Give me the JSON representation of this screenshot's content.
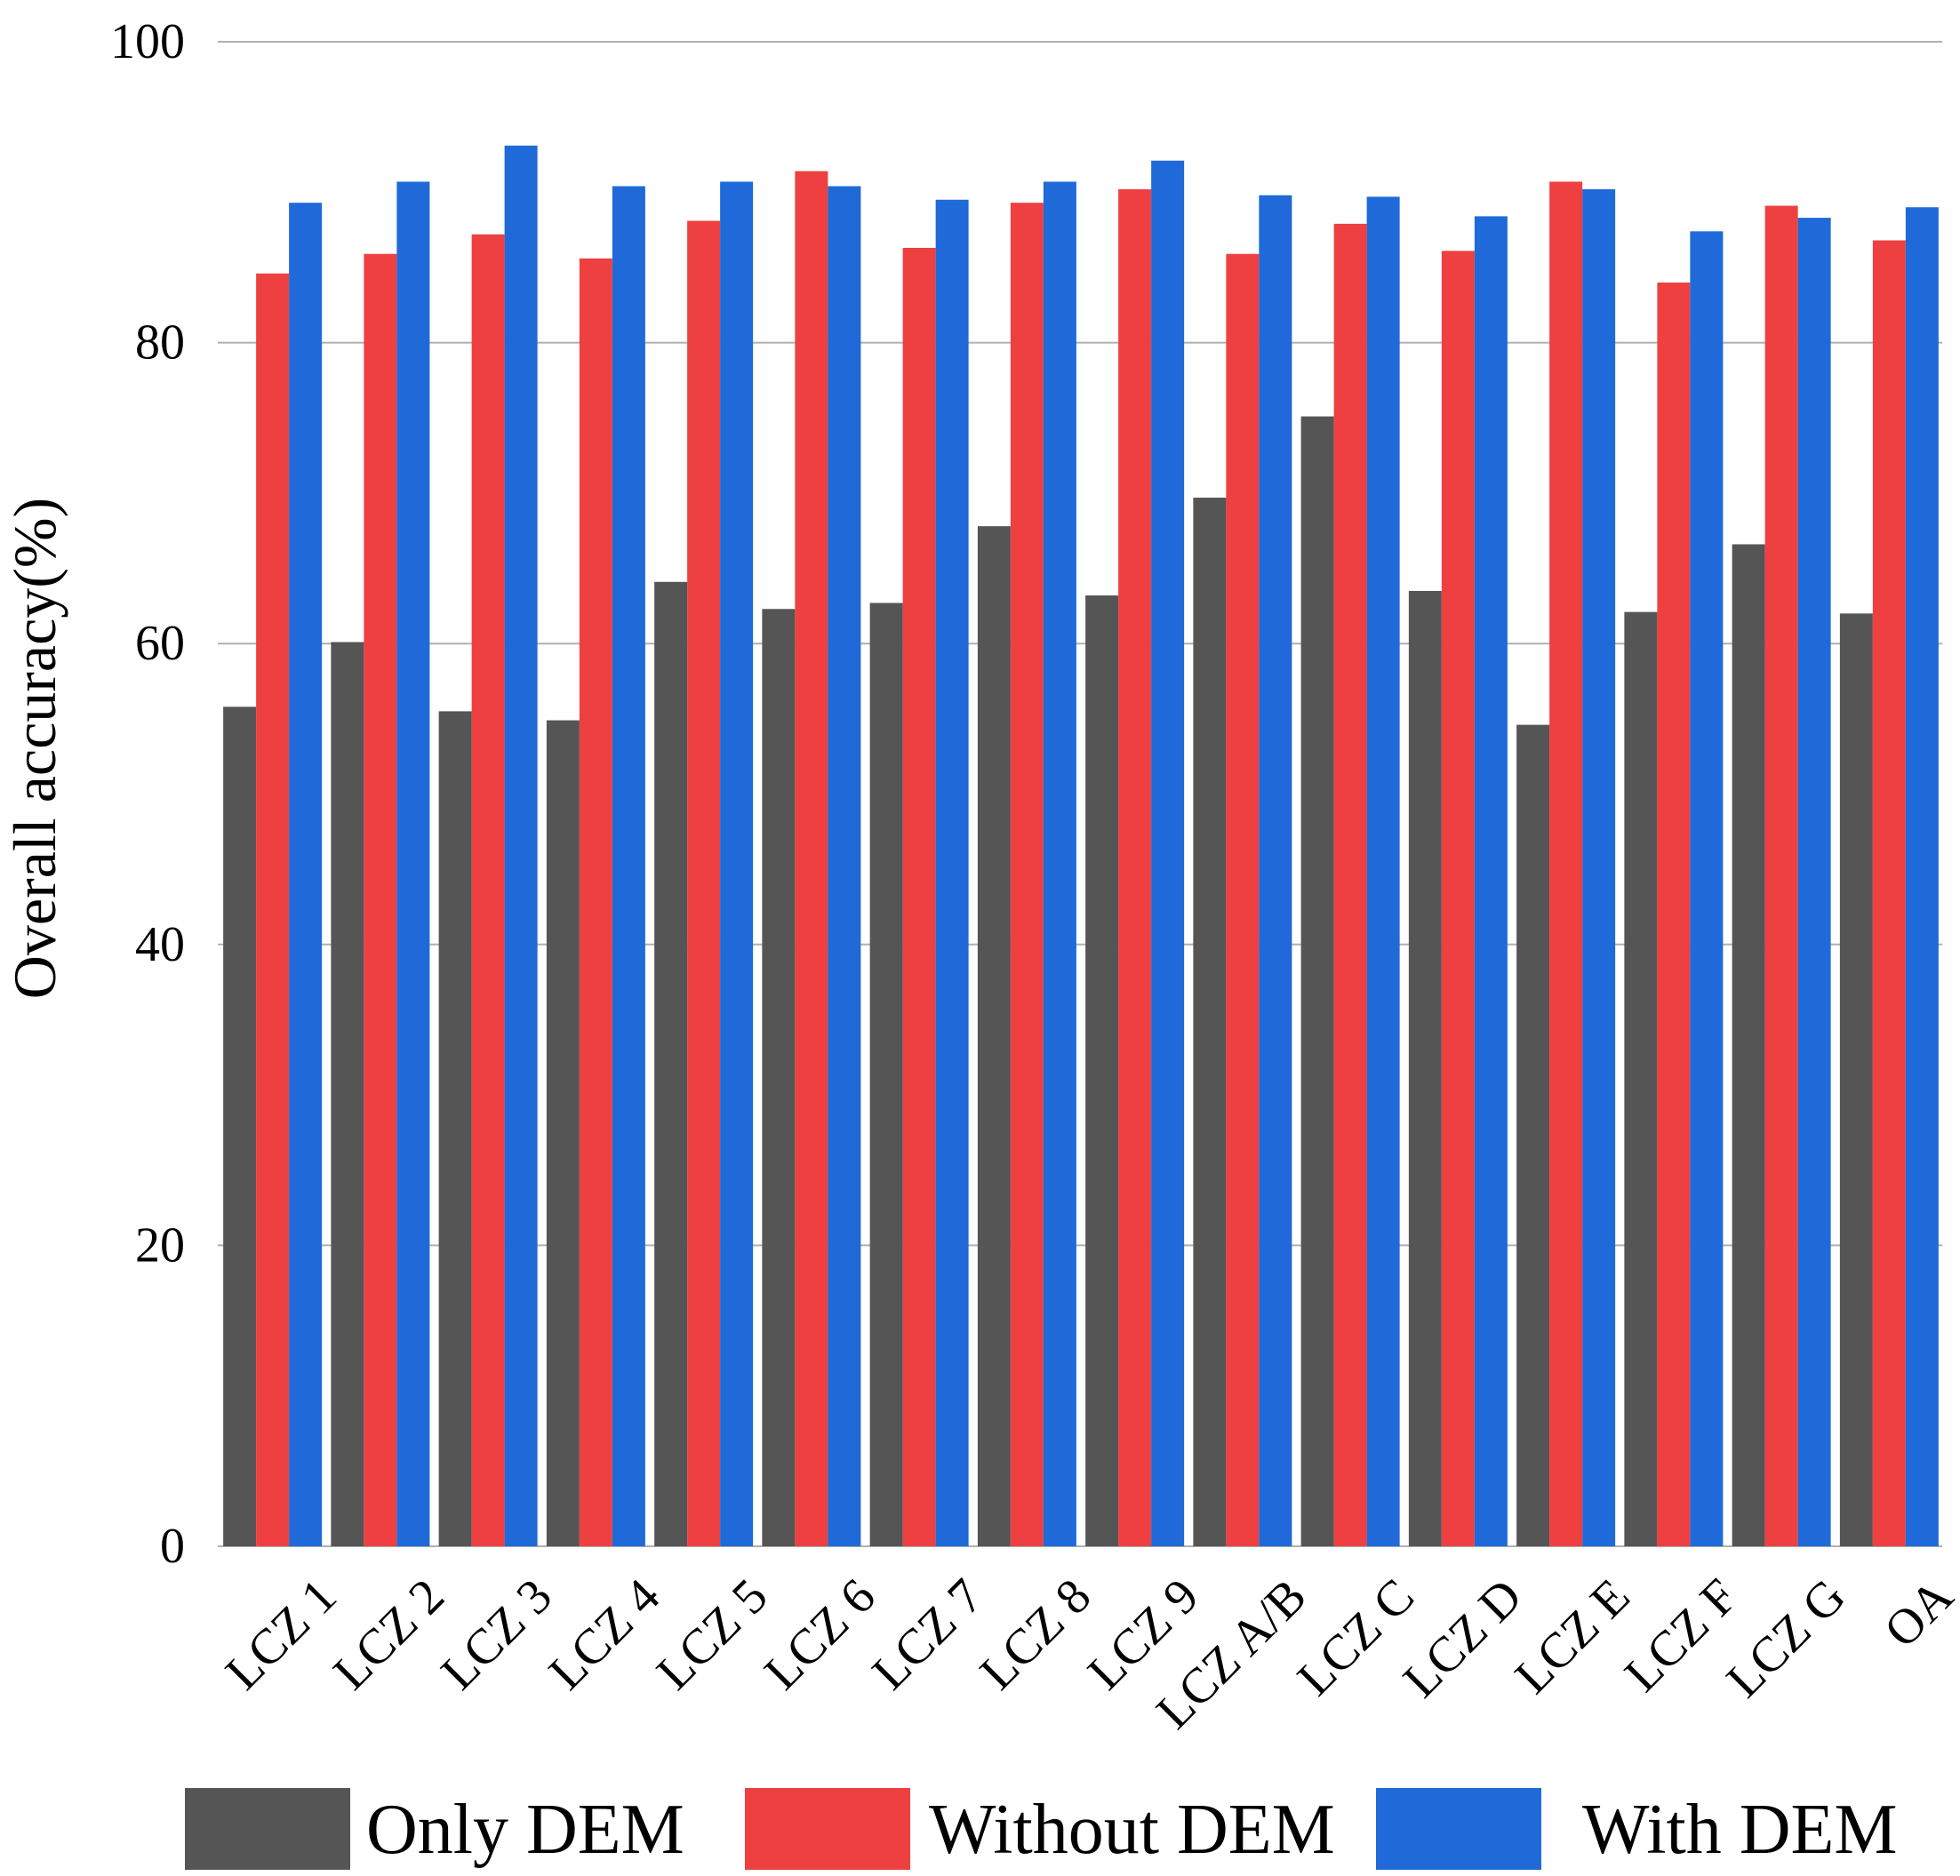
{
  "chart_data": {
    "type": "bar",
    "title": "",
    "xlabel": "",
    "ylabel": "Overall accuracy(%)",
    "ylim": [
      0,
      100
    ],
    "yticks": [
      0,
      20,
      40,
      60,
      80,
      100
    ],
    "grid": true,
    "legend_position": "bottom",
    "categories": [
      "LCZ 1",
      "LCZ 2",
      "LCZ 3",
      "LCZ 4",
      "LCZ 5",
      "LCZ 6",
      "LCZ 7",
      "LCZ 8",
      "LCZ 9",
      "LCZ A/B",
      "LCZ C",
      "LCZ D",
      "LCZ E",
      "LCZ F",
      "LCZ G",
      "OA"
    ],
    "series": [
      {
        "name": "Only DEM",
        "color": "#555555",
        "values": [
          55.8,
          60.1,
          55.5,
          54.9,
          64.1,
          62.3,
          62.7,
          67.8,
          63.2,
          69.7,
          75.1,
          63.5,
          54.6,
          62.1,
          66.6,
          62.0
        ]
      },
      {
        "name": "Without DEM",
        "color": "#ee4040",
        "values": [
          84.6,
          85.9,
          87.2,
          85.6,
          88.1,
          91.4,
          86.3,
          89.3,
          90.2,
          85.9,
          87.9,
          86.1,
          90.7,
          84.0,
          89.1,
          86.8
        ]
      },
      {
        "name": "With DEM",
        "color": "#1f6ad8",
        "values": [
          89.3,
          90.7,
          93.1,
          90.4,
          90.7,
          90.4,
          89.5,
          90.7,
          92.1,
          89.8,
          89.7,
          88.4,
          90.2,
          87.4,
          88.3,
          89.0
        ]
      }
    ]
  }
}
